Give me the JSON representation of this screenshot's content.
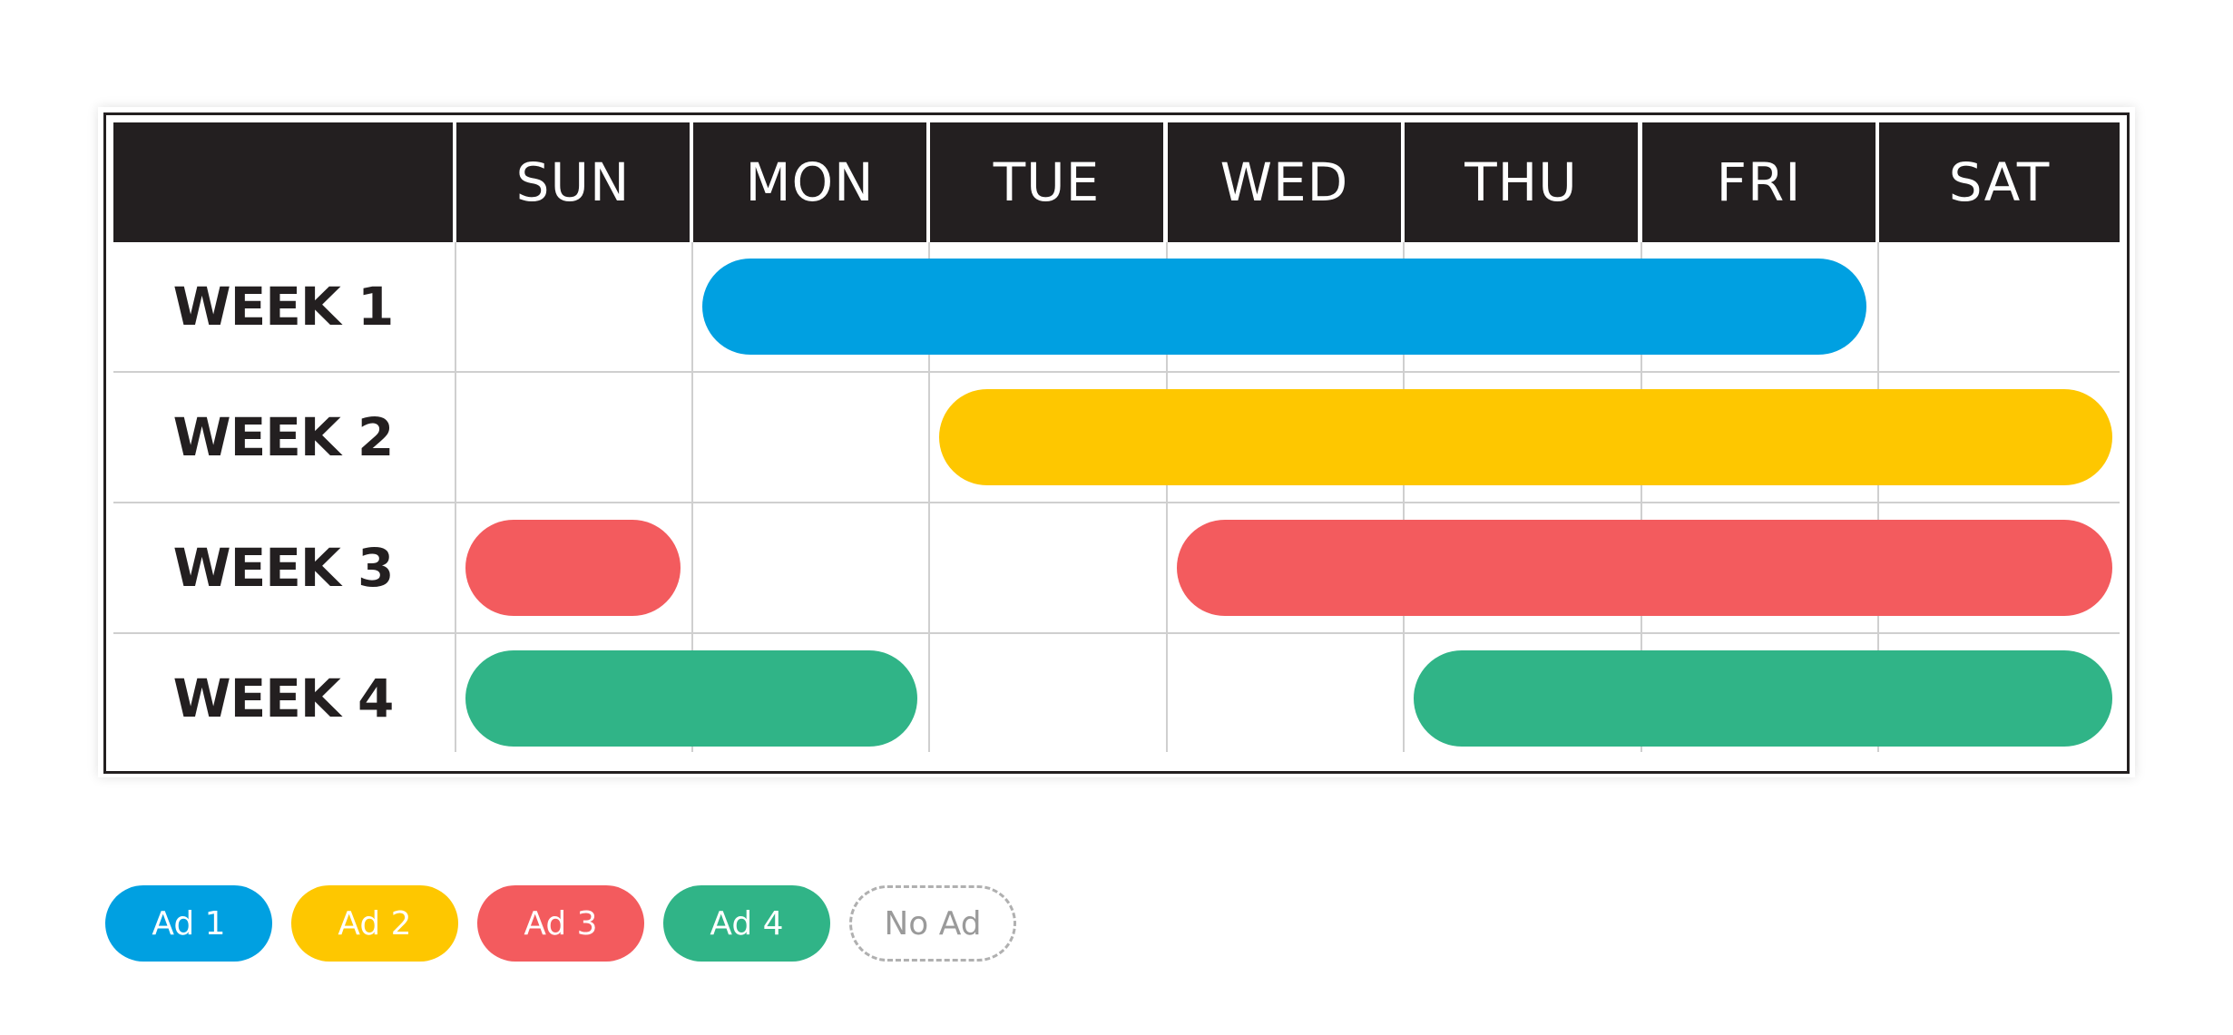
{
  "days": [
    "SUN",
    "MON",
    "TUE",
    "WED",
    "THU",
    "FRI",
    "SAT"
  ],
  "weeks": [
    "WEEK 1",
    "WEEK 2",
    "WEEK 3",
    "WEEK 4"
  ],
  "colors": {
    "ad1": "#00a0e1",
    "ad2": "#fec700",
    "ad3": "#f35b5e",
    "ad4": "#30b487",
    "header": "#231f20",
    "grid": "#cfcfcf"
  },
  "schedule": [
    {
      "week": "WEEK 1",
      "ad": "Ad 1",
      "from": "MON",
      "to": "FRI"
    },
    {
      "week": "WEEK 2",
      "ad": "Ad 2",
      "from": "TUE",
      "to": "SAT"
    },
    {
      "week": "WEEK 3",
      "ad": "Ad 3",
      "from": "SUN",
      "to": "SUN"
    },
    {
      "week": "WEEK 3",
      "ad": "Ad 3",
      "from": "WED",
      "to": "SAT"
    },
    {
      "week": "WEEK 4",
      "ad": "Ad 4",
      "from": "SUN",
      "to": "MON"
    },
    {
      "week": "WEEK 4",
      "ad": "Ad 4",
      "from": "THU",
      "to": "SAT"
    }
  ],
  "legend": [
    {
      "label": "Ad 1",
      "color": "#00a0e1"
    },
    {
      "label": "Ad 2",
      "color": "#fec700"
    },
    {
      "label": "Ad 3",
      "color": "#f35b5e"
    },
    {
      "label": "Ad 4",
      "color": "#30b487"
    },
    {
      "label": "No Ad",
      "color": ""
    }
  ]
}
